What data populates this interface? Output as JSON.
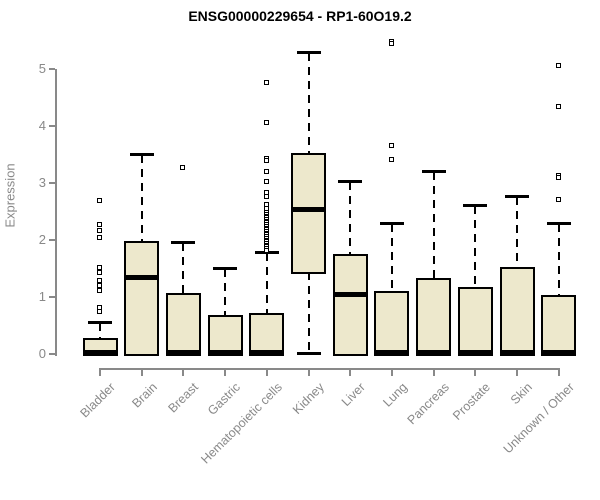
{
  "title": "ENSG00000229654 - RP1-60O19.2",
  "chart_data": {
    "type": "boxplot",
    "title": "ENSG00000229654 - RP1-60O19.2",
    "xlabel": "",
    "ylabel": "Expression",
    "ylim": [
      0,
      5
    ],
    "yticks": [
      0,
      1,
      2,
      3,
      4,
      5
    ],
    "grid": false,
    "legend": "none",
    "colors": {
      "box_fill": "#EDE8CC",
      "box_border": "#000000",
      "median": "#000000",
      "axis": "#898989",
      "tick_labels": "#898989",
      "title": "#000000",
      "background": "#FFFFFF"
    },
    "categories": [
      "Bladder",
      "Brain",
      "Breast",
      "Gastric",
      "Hematopoietic cells",
      "Kidney",
      "Liver",
      "Lung",
      "Pancreas",
      "Prostate",
      "Skin",
      "Unknown / Other"
    ],
    "series": [
      {
        "category": "Bladder",
        "whisker_low": 0,
        "q1": 0,
        "median": 0.03,
        "q3": 0.28,
        "whisker_high": 0.55,
        "outliers": [
          2.68,
          2.26,
          2.16,
          2.04,
          1.51,
          1.42,
          1.28,
          1.19,
          1.1,
          0.81,
          0.74
        ]
      },
      {
        "category": "Brain",
        "whisker_low": 0,
        "q1": 0,
        "median": 1.35,
        "q3": 1.98,
        "whisker_high": 3.5,
        "outliers": []
      },
      {
        "category": "Breast",
        "whisker_low": 0,
        "q1": 0,
        "median": 0.03,
        "q3": 1.07,
        "whisker_high": 1.95,
        "outliers": [
          3.27
        ]
      },
      {
        "category": "Gastric",
        "whisker_low": 0,
        "q1": 0,
        "median": 0.03,
        "q3": 0.68,
        "whisker_high": 1.5,
        "outliers": []
      },
      {
        "category": "Hematopoietic cells",
        "whisker_low": 0,
        "q1": 0,
        "median": 0.03,
        "q3": 0.72,
        "whisker_high": 1.77,
        "outliers": [
          4.75,
          4.06,
          3.42,
          3.38,
          3.19,
          3.02,
          2.83,
          2.75,
          2.62,
          2.54,
          2.47,
          2.44,
          2.41,
          2.38,
          2.35,
          2.32,
          2.29,
          2.26,
          2.23,
          2.2,
          2.17,
          2.14,
          2.11,
          2.08,
          2.05,
          2.02,
          1.99,
          1.96,
          1.93,
          1.9,
          1.87,
          1.84,
          1.81
        ]
      },
      {
        "category": "Kidney",
        "whisker_low": 0.02,
        "q1": 1.43,
        "median": 2.55,
        "q3": 3.53,
        "whisker_high": 5.28,
        "outliers": []
      },
      {
        "category": "Liver",
        "whisker_low": 0,
        "q1": 0,
        "median": 1.06,
        "q3": 1.76,
        "whisker_high": 3.02,
        "outliers": []
      },
      {
        "category": "Lung",
        "whisker_low": 0,
        "q1": 0,
        "median": 0.03,
        "q3": 1.1,
        "whisker_high": 2.28,
        "outliers": [
          5.47,
          5.43,
          3.65,
          3.4
        ]
      },
      {
        "category": "Pancreas",
        "whisker_low": 0,
        "q1": 0,
        "median": 0.03,
        "q3": 1.33,
        "whisker_high": 3.2,
        "outliers": []
      },
      {
        "category": "Prostate",
        "whisker_low": 0,
        "q1": 0,
        "median": 0.03,
        "q3": 1.18,
        "whisker_high": 2.6,
        "outliers": []
      },
      {
        "category": "Skin",
        "whisker_low": 0,
        "q1": 0,
        "median": 0.03,
        "q3": 1.52,
        "whisker_high": 2.76,
        "outliers": []
      },
      {
        "category": "Unknown / Other",
        "whisker_low": 0,
        "q1": 0,
        "median": 0.03,
        "q3": 1.03,
        "whisker_high": 2.28,
        "outliers": [
          5.06,
          4.33,
          3.13,
          3.09,
          2.71
        ]
      }
    ]
  }
}
